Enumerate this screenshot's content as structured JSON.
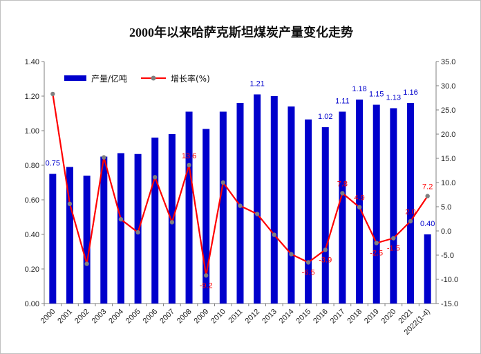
{
  "chart_data": {
    "type": "bar",
    "title": "2000年以来哈萨克斯坦煤炭产量变化走势",
    "categories": [
      "2000",
      "2001",
      "2002",
      "2003",
      "2004",
      "2005",
      "2006",
      "2007",
      "2008",
      "2009",
      "2010",
      "2011",
      "2012",
      "2013",
      "2014",
      "2015",
      "2016",
      "2017",
      "2018",
      "2019",
      "2020",
      "2021",
      "2022(1-4)"
    ],
    "series": [
      {
        "name": "产量/亿吨",
        "type": "bar",
        "axis": "left",
        "color": "#0000CC",
        "values": [
          0.75,
          0.79,
          0.74,
          0.85,
          0.87,
          0.865,
          0.96,
          0.98,
          1.11,
          1.01,
          1.11,
          1.16,
          1.21,
          1.2,
          1.14,
          1.065,
          1.02,
          1.11,
          1.18,
          1.15,
          1.13,
          1.16,
          0.4
        ],
        "data_labels": {
          "0": "0.75",
          "12": "1.21",
          "16": "1.02",
          "17": "1.11",
          "18": "1.18",
          "19": "1.15",
          "20": "1.13",
          "21": "1.16",
          "22": "0.40"
        }
      },
      {
        "name": "增长率(%)",
        "type": "line",
        "axis": "right",
        "color": "#FF0000",
        "marker_color": "#808080",
        "values": [
          28.3,
          5.6,
          -6.8,
          15.2,
          2.4,
          -0.3,
          11.1,
          1.8,
          13.6,
          -9.2,
          10.0,
          5.2,
          3.5,
          -0.8,
          -4.8,
          -6.5,
          -3.9,
          7.8,
          4.9,
          -2.5,
          -1.5,
          2.0,
          7.2
        ],
        "data_labels": {
          "8": "13.6",
          "9": "-9.2",
          "15": "-6.5",
          "16": "-3.9",
          "17": "7.8",
          "18": "4.9",
          "19": "-2.5",
          "20": "-1.5",
          "21": "2.0",
          "22": "7.2"
        }
      }
    ],
    "y_left": {
      "min": 0,
      "max": 1.4,
      "ticks": [
        "0.00",
        "0.20",
        "0.40",
        "0.60",
        "0.80",
        "1.00",
        "1.20",
        "1.40"
      ]
    },
    "y_right": {
      "min": -15,
      "max": 35,
      "ticks": [
        "-15.0",
        "-10.0",
        "-5.0",
        "0.0",
        "5.0",
        "10.0",
        "15.0",
        "20.0",
        "25.0",
        "30.0",
        "35.0"
      ]
    },
    "legend_position": "top-left",
    "grid": false
  }
}
